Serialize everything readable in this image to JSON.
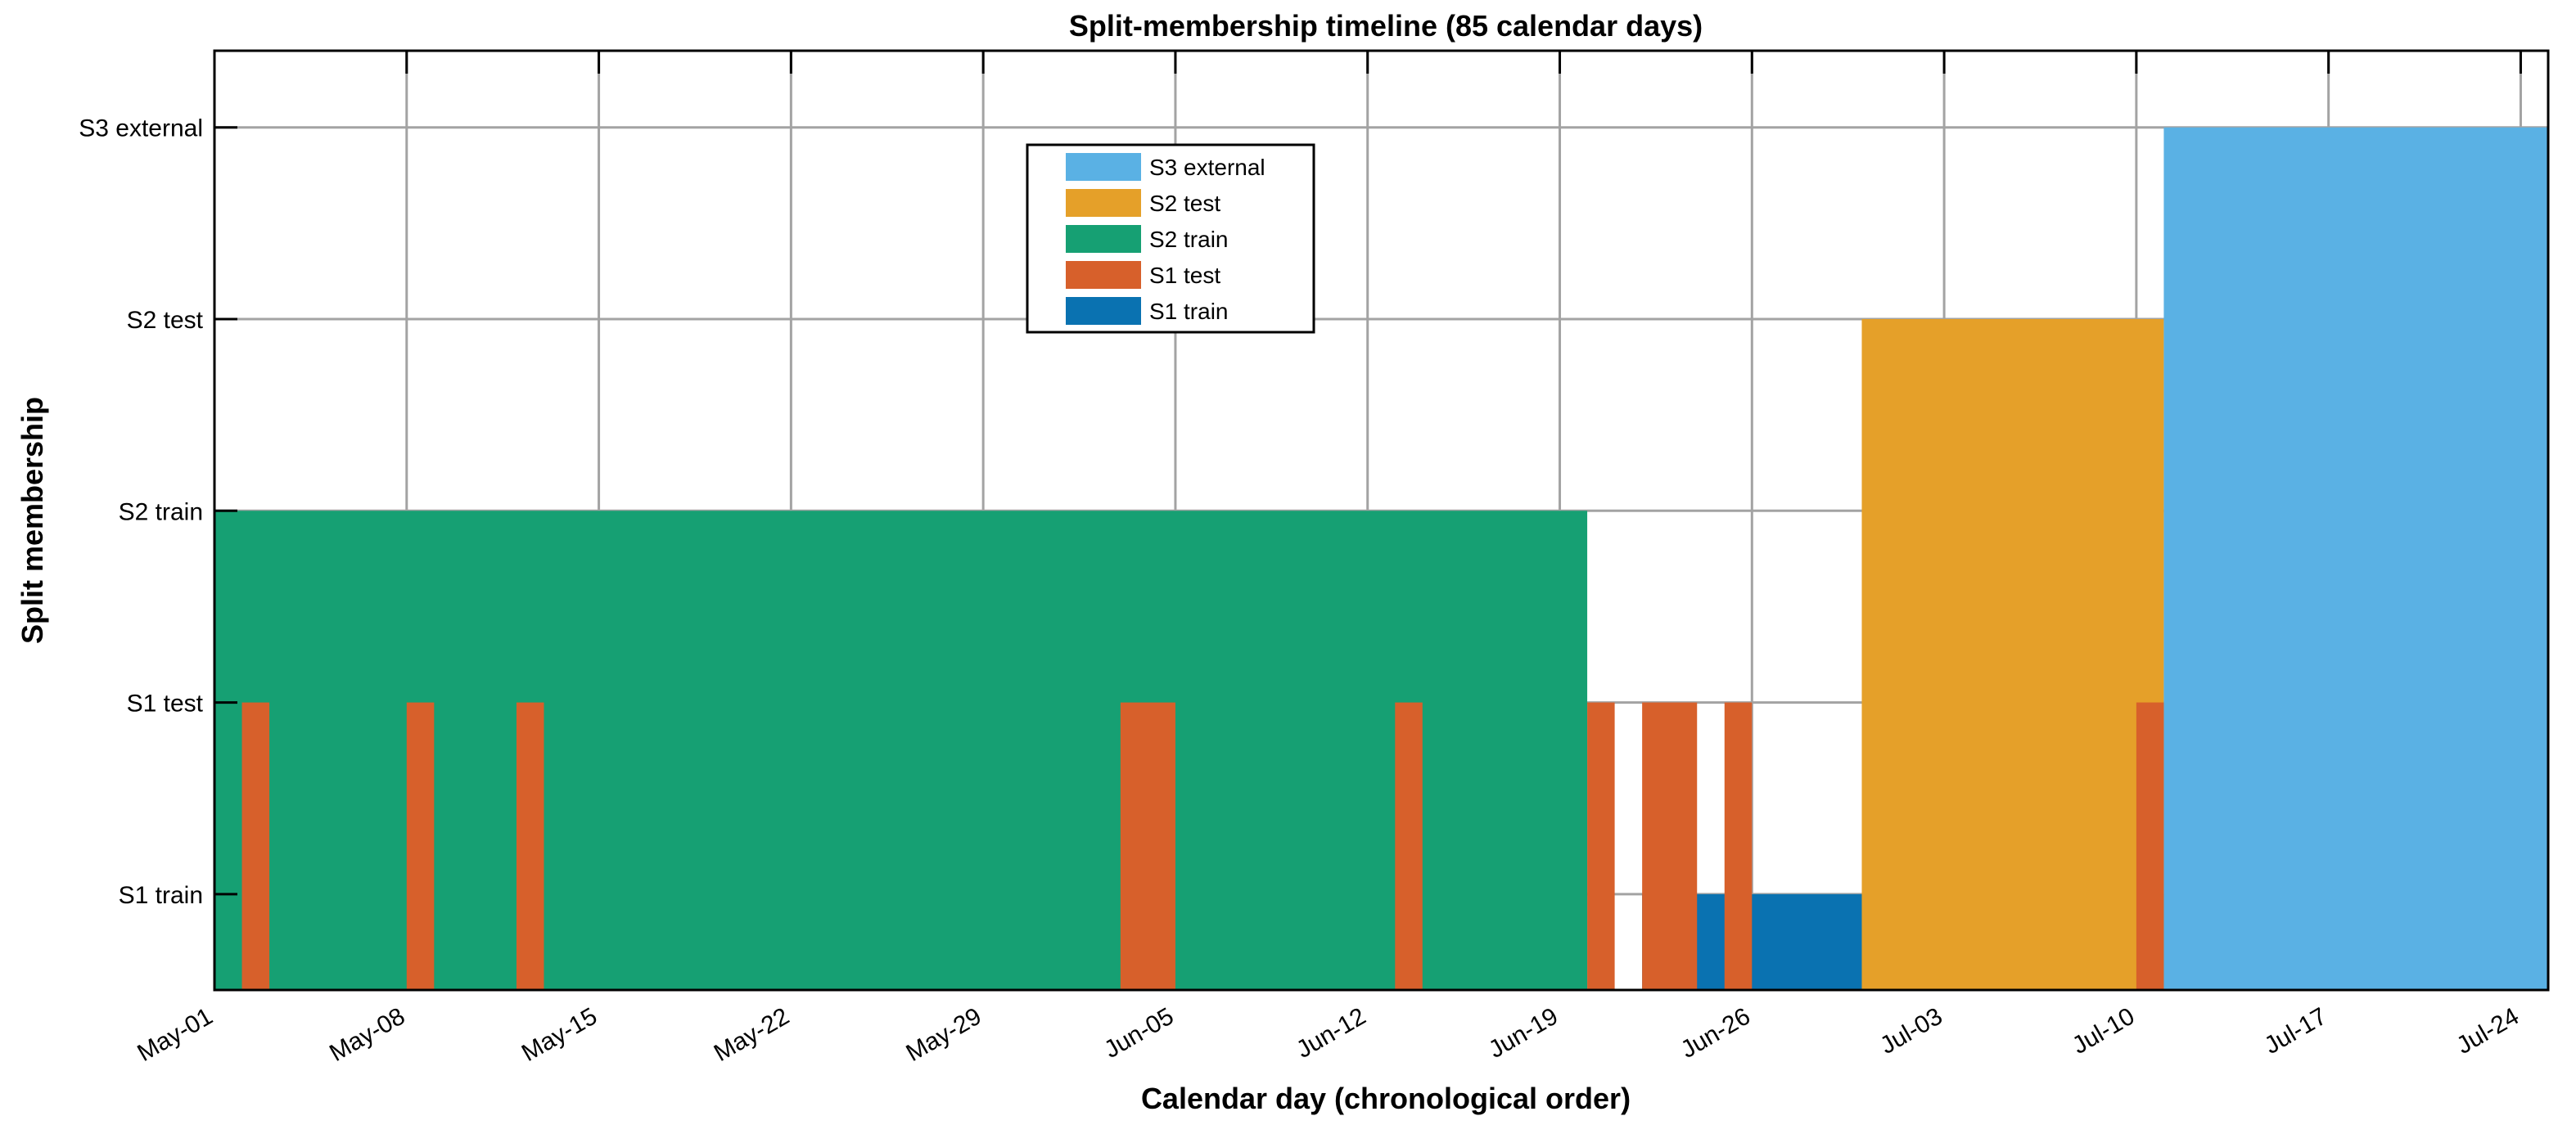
{
  "chart_data": {
    "type": "bar",
    "title": "Split-membership timeline  (85 calendar days)",
    "xlabel": "Calendar day (chronological order)",
    "ylabel": "Split membership",
    "x_ticks": [
      "May-01",
      "May-08",
      "May-15",
      "May-22",
      "May-29",
      "Jun-05",
      "Jun-12",
      "Jun-19",
      "Jun-26",
      "Jul-03",
      "Jul-10",
      "Jul-17",
      "Jul-24"
    ],
    "y_ticks": [
      "S1 train",
      "S1 test",
      "S2 train",
      "S2 test",
      "S3 external"
    ],
    "xlim": [
      "May-01",
      "Jul-25"
    ],
    "ylim": [
      0.5,
      5.4
    ],
    "grid": true,
    "legend_position": "top-center",
    "legend": [
      {
        "label": "S3 external",
        "color": "#5ab1e4"
      },
      {
        "label": "S2 test",
        "color": "#e5a029"
      },
      {
        "label": "S2 train",
        "color": "#16a073"
      },
      {
        "label": "S1 test",
        "color": "#d7602b"
      },
      {
        "label": "S1 train",
        "color": "#0a72b1"
      }
    ],
    "series": [
      {
        "name": "S1 train",
        "level": 1,
        "color": "#0a72b1",
        "ranges": [
          [
            "May-01",
            "Jun-20"
          ],
          [
            "Jun-22",
            "Jul-11"
          ]
        ]
      },
      {
        "name": "S2 train",
        "level": 3,
        "color": "#16a073",
        "ranges": [
          [
            "May-01",
            "Jun-20"
          ]
        ]
      },
      {
        "name": "S2 test",
        "level": 4,
        "color": "#e5a029",
        "ranges": [
          [
            "Jun-30",
            "Jul-11"
          ]
        ]
      },
      {
        "name": "S3 external",
        "level": 5,
        "color": "#5ab1e4",
        "ranges": [
          [
            "Jul-11",
            "Jul-25"
          ]
        ]
      },
      {
        "name": "S1 test",
        "level": 2,
        "color": "#d7602b",
        "ranges": [
          [
            "May-02",
            "May-03"
          ],
          [
            "May-08",
            "May-09"
          ],
          [
            "May-12",
            "May-13"
          ],
          [
            "Jun-03",
            "Jun-05"
          ],
          [
            "Jun-13",
            "Jun-14"
          ],
          [
            "Jun-20",
            "Jun-21"
          ],
          [
            "Jun-22",
            "Jun-24"
          ],
          [
            "Jun-25",
            "Jun-26"
          ],
          [
            "Jul-10",
            "Jul-11"
          ]
        ]
      }
    ]
  }
}
